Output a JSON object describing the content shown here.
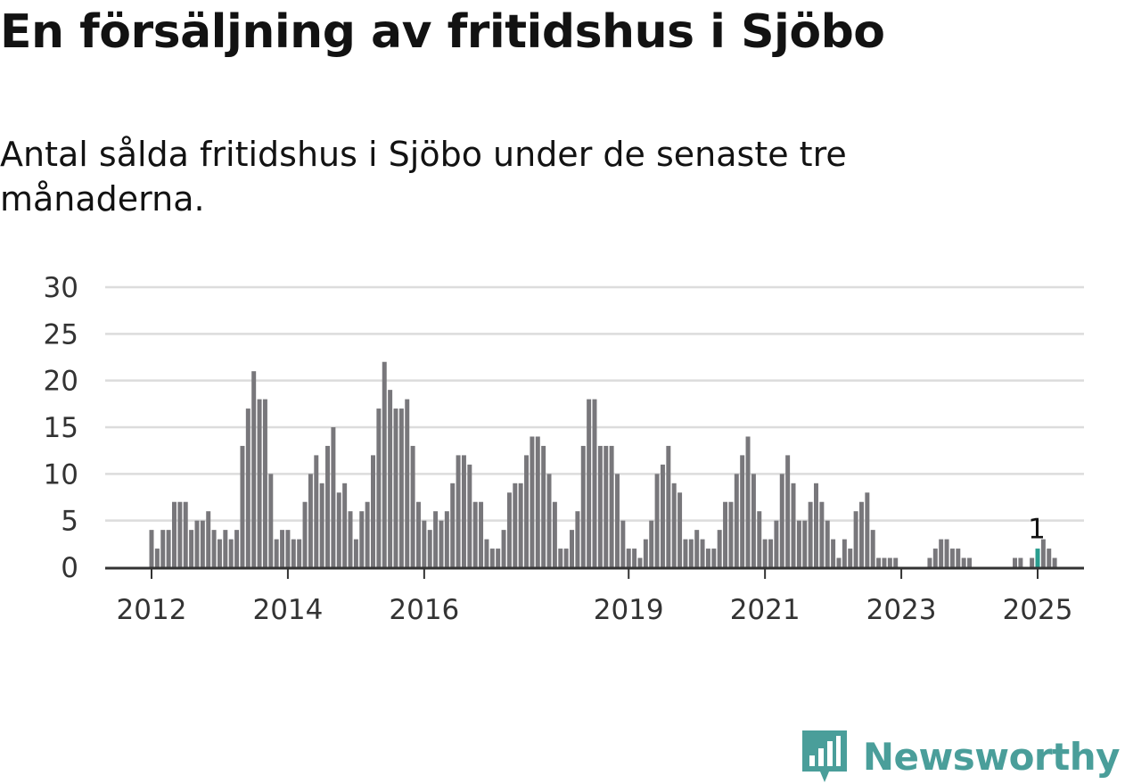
{
  "title": "En försäljning av fritidshus i Sjöbo",
  "subtitle": "Antal sålda fritidshus i Sjöbo under de senaste tre månaderna.",
  "brand": {
    "name": "Newsworthy",
    "color": "#4a9e9a",
    "logo_icon": "newsworthy-chart-logo-icon"
  },
  "colors": {
    "bar": "#78777b",
    "highlight": "#2a9d8f",
    "grid": "#dcdcdc",
    "axis": "#333333"
  },
  "chart_data": {
    "type": "bar",
    "title": "En försäljning av fritidshus i Sjöbo",
    "xlabel": "",
    "ylabel": "",
    "ylim": [
      0,
      30
    ],
    "yticks": [
      0,
      5,
      10,
      15,
      20,
      25,
      30
    ],
    "x_start": "2012-01",
    "x_end": "2025-01",
    "xticks": [
      {
        "label": "2012",
        "date": "2012-01"
      },
      {
        "label": "2014",
        "date": "2014-01"
      },
      {
        "label": "2016",
        "date": "2016-01"
      },
      {
        "label": "2019",
        "date": "2019-01"
      },
      {
        "label": "2021",
        "date": "2021-01"
      },
      {
        "label": "2023",
        "date": "2023-01"
      },
      {
        "label": "2025",
        "date": "2025-01"
      }
    ],
    "grid": true,
    "highlight": {
      "date": "2025-01",
      "value": 1,
      "label": "1"
    },
    "values": [
      4,
      2,
      4,
      4,
      7,
      7,
      7,
      4,
      5,
      5,
      6,
      4,
      3,
      4,
      3,
      4,
      13,
      17,
      21,
      18,
      18,
      10,
      3,
      4,
      4,
      3,
      3,
      7,
      10,
      12,
      9,
      13,
      15,
      8,
      9,
      6,
      3,
      6,
      7,
      12,
      17,
      22,
      19,
      17,
      17,
      18,
      13,
      7,
      5,
      4,
      6,
      5,
      6,
      9,
      12,
      12,
      11,
      7,
      7,
      3,
      2,
      2,
      4,
      8,
      9,
      9,
      12,
      14,
      14,
      13,
      10,
      7,
      2,
      2,
      4,
      6,
      13,
      18,
      18,
      13,
      13,
      13,
      10,
      5,
      2,
      2,
      1,
      3,
      5,
      10,
      11,
      13,
      9,
      8,
      3,
      3,
      4,
      3,
      2,
      2,
      4,
      7,
      7,
      10,
      12,
      14,
      10,
      6,
      3,
      3,
      5,
      10,
      12,
      9,
      5,
      5,
      7,
      9,
      7,
      5,
      3,
      1,
      3,
      2,
      6,
      7,
      8,
      4,
      1,
      1,
      1,
      1,
      0,
      0,
      0,
      0,
      0,
      1,
      2,
      3,
      3,
      2,
      2,
      1,
      1,
      0,
      0,
      0,
      0,
      0,
      0,
      0,
      1,
      1,
      0,
      1,
      2,
      3,
      2,
      1
    ]
  }
}
